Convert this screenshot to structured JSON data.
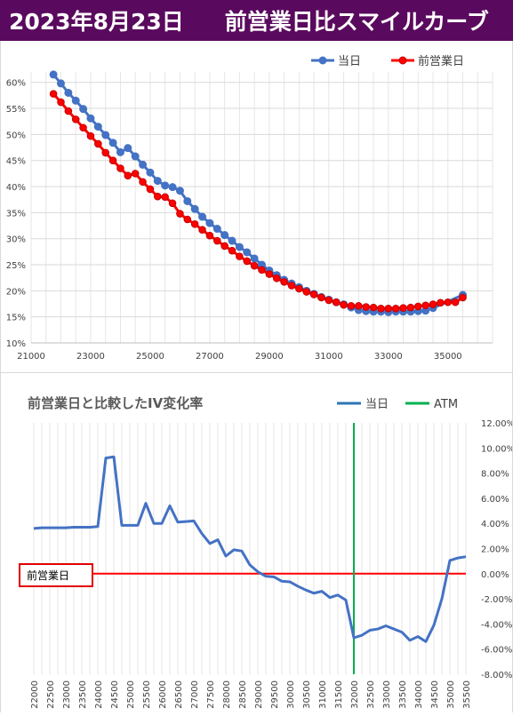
{
  "header": {
    "date": "2023年8月23日",
    "title": "前営業日比スマイルカーブ"
  },
  "chart_data": [
    {
      "type": "scatter",
      "title": "",
      "xlabel": "",
      "ylabel": "",
      "xlim": [
        21000,
        36500
      ],
      "ylim": [
        0.1,
        0.62
      ],
      "x_ticks": [
        "21000",
        "23000",
        "25000",
        "27000",
        "29000",
        "31000",
        "33000",
        "35000"
      ],
      "y_ticks": [
        "10%",
        "15%",
        "20%",
        "25%",
        "30%",
        "35%",
        "40%",
        "45%",
        "50%",
        "55%",
        "60%"
      ],
      "grid": true,
      "legend_position": "top-right",
      "series": [
        {
          "name": "当日",
          "color": "#4472c4",
          "points": [
            [
              21750,
              0.615
            ],
            [
              22000,
              0.598
            ],
            [
              22250,
              0.58
            ],
            [
              22500,
              0.565
            ],
            [
              22750,
              0.549
            ],
            [
              23000,
              0.531
            ],
            [
              23250,
              0.515
            ],
            [
              23500,
              0.499
            ],
            [
              23750,
              0.484
            ],
            [
              24000,
              0.466
            ],
            [
              24250,
              0.474
            ],
            [
              24500,
              0.458
            ],
            [
              24750,
              0.442
            ],
            [
              25000,
              0.427
            ],
            [
              25250,
              0.411
            ],
            [
              25500,
              0.402
            ],
            [
              25750,
              0.399
            ],
            [
              26000,
              0.392
            ],
            [
              26250,
              0.372
            ],
            [
              26500,
              0.357
            ],
            [
              26750,
              0.342
            ],
            [
              27000,
              0.33
            ],
            [
              27250,
              0.319
            ],
            [
              27500,
              0.307
            ],
            [
              27750,
              0.296
            ],
            [
              28000,
              0.284
            ],
            [
              28250,
              0.274
            ],
            [
              28500,
              0.262
            ],
            [
              28750,
              0.25
            ],
            [
              29000,
              0.239
            ],
            [
              29250,
              0.23
            ],
            [
              29500,
              0.221
            ],
            [
              29750,
              0.214
            ],
            [
              30000,
              0.207
            ],
            [
              30250,
              0.2
            ],
            [
              30500,
              0.194
            ],
            [
              30750,
              0.188
            ],
            [
              31000,
              0.183
            ],
            [
              31250,
              0.178
            ],
            [
              31500,
              0.174
            ],
            [
              31750,
              0.168
            ],
            [
              32000,
              0.163
            ],
            [
              32250,
              0.161
            ],
            [
              32500,
              0.16
            ],
            [
              32750,
              0.16
            ],
            [
              33000,
              0.159
            ],
            [
              33250,
              0.16
            ],
            [
              33500,
              0.16
            ],
            [
              33750,
              0.16
            ],
            [
              34000,
              0.161
            ],
            [
              34250,
              0.162
            ],
            [
              34500,
              0.167
            ],
            [
              35500,
              0.192
            ]
          ]
        },
        {
          "name": "前営業日",
          "color": "#ff0000",
          "points": [
            [
              21750,
              0.578
            ],
            [
              22000,
              0.562
            ],
            [
              22250,
              0.545
            ],
            [
              22500,
              0.529
            ],
            [
              22750,
              0.513
            ],
            [
              23000,
              0.497
            ],
            [
              23250,
              0.482
            ],
            [
              23500,
              0.465
            ],
            [
              23750,
              0.45
            ],
            [
              24000,
              0.435
            ],
            [
              24250,
              0.421
            ],
            [
              24500,
              0.425
            ],
            [
              24750,
              0.409
            ],
            [
              25000,
              0.395
            ],
            [
              25250,
              0.381
            ],
            [
              25500,
              0.38
            ],
            [
              25750,
              0.368
            ],
            [
              26000,
              0.348
            ],
            [
              26250,
              0.337
            ],
            [
              26500,
              0.328
            ],
            [
              26750,
              0.317
            ],
            [
              27000,
              0.306
            ],
            [
              27250,
              0.296
            ],
            [
              27500,
              0.286
            ],
            [
              27750,
              0.277
            ],
            [
              28000,
              0.266
            ],
            [
              28250,
              0.257
            ],
            [
              28500,
              0.248
            ],
            [
              28750,
              0.24
            ],
            [
              29000,
              0.232
            ],
            [
              29250,
              0.224
            ],
            [
              29500,
              0.217
            ],
            [
              29750,
              0.21
            ],
            [
              30000,
              0.204
            ],
            [
              30250,
              0.198
            ],
            [
              30500,
              0.193
            ],
            [
              30750,
              0.187
            ],
            [
              31000,
              0.182
            ],
            [
              31250,
              0.178
            ],
            [
              31500,
              0.173
            ],
            [
              31750,
              0.171
            ],
            [
              32000,
              0.171
            ],
            [
              32250,
              0.169
            ],
            [
              32500,
              0.168
            ],
            [
              32750,
              0.166
            ],
            [
              33000,
              0.166
            ],
            [
              33250,
              0.166
            ],
            [
              33500,
              0.167
            ],
            [
              33750,
              0.168
            ],
            [
              34000,
              0.17
            ],
            [
              34250,
              0.172
            ],
            [
              34500,
              0.174
            ],
            [
              34750,
              0.177
            ],
            [
              35000,
              0.178
            ],
            [
              35250,
              0.178
            ],
            [
              35500,
              0.187
            ]
          ]
        }
      ]
    },
    {
      "type": "line",
      "title": "前営業日と比較したIV変化率",
      "xlabel": "",
      "ylabel": "",
      "categories": [
        "22000",
        "22500",
        "23000",
        "23500",
        "24000",
        "24500",
        "25000",
        "25500",
        "26000",
        "26500",
        "27000",
        "27500",
        "28000",
        "28500",
        "29000",
        "29500",
        "30000",
        "30500",
        "31000",
        "31500",
        "32000",
        "32500",
        "33000",
        "33500",
        "34000",
        "34500",
        "35000",
        "35500"
      ],
      "x": [
        22000,
        22250,
        22500,
        22750,
        23000,
        23250,
        23500,
        23750,
        24000,
        24250,
        24500,
        24750,
        25000,
        25250,
        25500,
        25750,
        26000,
        26250,
        26500,
        26750,
        27000,
        27250,
        27500,
        27750,
        28000,
        28250,
        28500,
        28750,
        29000,
        29250,
        29500,
        29750,
        30000,
        30250,
        30500,
        30750,
        31000,
        31250,
        31500,
        31750,
        32000,
        32250,
        32500,
        32750,
        33000,
        33250,
        33500,
        33750,
        34000,
        34250,
        34500,
        34750,
        35000,
        35250,
        35500
      ],
      "ylim": [
        -0.08,
        0.12
      ],
      "y_ticks": [
        "12.00%",
        "10.00%",
        "8.00%",
        "6.00%",
        "4.00%",
        "2.00%",
        "0.00%",
        "-2.00%",
        "-4.00%",
        "-6.00%",
        "-8.00%"
      ],
      "reference_line_label": "前営業日",
      "atm_strike": 32000,
      "legend_position": "top-right",
      "series": [
        {
          "name": "当日",
          "color": "#4472c4",
          "values": [
            0.036,
            0.0365,
            0.0365,
            0.0365,
            0.0365,
            0.037,
            0.037,
            0.037,
            0.0375,
            0.092,
            0.093,
            0.0385,
            0.0385,
            0.0385,
            0.056,
            0.04,
            0.04,
            0.054,
            0.041,
            0.0415,
            0.042,
            0.032,
            0.024,
            0.027,
            0.014,
            0.019,
            0.018,
            0.007,
            0.0015,
            -0.002,
            -0.0025,
            -0.006,
            -0.0065,
            -0.01,
            -0.013,
            -0.0155,
            -0.014,
            -0.019,
            -0.017,
            -0.021,
            -0.051,
            -0.049,
            -0.045,
            -0.044,
            -0.0415,
            -0.044,
            -0.0465,
            -0.053,
            -0.05,
            -0.054,
            -0.041,
            -0.02,
            0.0105,
            0.0125,
            0.0135
          ]
        },
        {
          "name": "ATM",
          "color": "#00b050"
        }
      ]
    }
  ]
}
